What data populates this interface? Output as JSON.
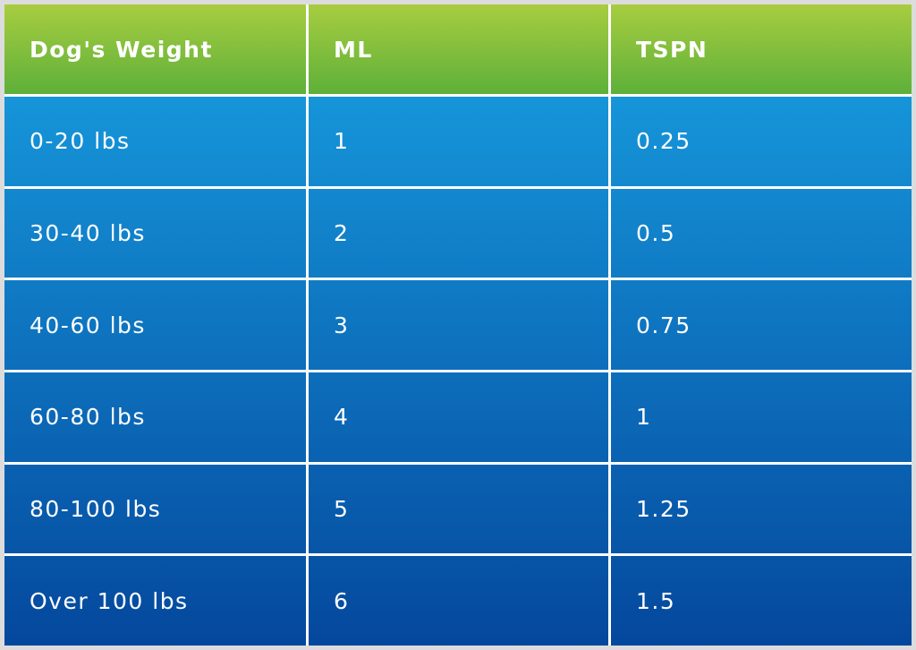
{
  "table": {
    "header": [
      "Dog's Weight",
      "ML",
      "TSPN"
    ],
    "rows": [
      [
        "0-20 lbs",
        "1",
        "0.25"
      ],
      [
        "30-40 lbs",
        "2",
        "0.5"
      ],
      [
        "40-60 lbs",
        "3",
        "0.75"
      ],
      [
        "60-80 lbs",
        "4",
        "1"
      ],
      [
        "80-100 lbs",
        "5",
        "1.25"
      ],
      [
        "Over 100 lbs",
        "6",
        "1.5"
      ]
    ]
  }
}
